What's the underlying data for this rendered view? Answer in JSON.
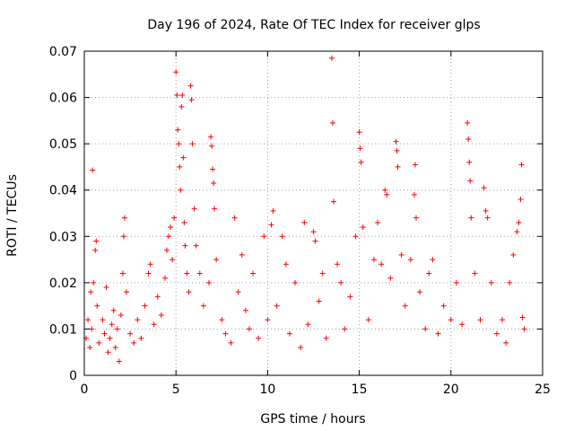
{
  "chart_data": {
    "type": "scatter",
    "title": "Day 196 of 2024, Rate Of TEC Index for receiver glps",
    "xlabel": "GPS time / hours",
    "ylabel": "ROTI / TECUs",
    "xlim": [
      0,
      25
    ],
    "ylim": [
      0,
      0.07
    ],
    "xticks": [
      0,
      5,
      10,
      15,
      20,
      25
    ],
    "xtick_labels": [
      "0",
      "5",
      "10",
      "15",
      "20",
      "25"
    ],
    "yticks": [
      0,
      0.01,
      0.02,
      0.03,
      0.04,
      0.05,
      0.06,
      0.07
    ],
    "ytick_labels": [
      "0",
      "0.01",
      "0.02",
      "0.03",
      "0.04",
      "0.05",
      "0.06",
      "0.07"
    ],
    "grid": true,
    "marker": "+",
    "series_color": "#ff0000",
    "points": [
      [
        0.1,
        0.008
      ],
      [
        0.2,
        0.012
      ],
      [
        0.3,
        0.006
      ],
      [
        0.35,
        0.018
      ],
      [
        0.4,
        0.01
      ],
      [
        0.45,
        0.0443
      ],
      [
        0.5,
        0.02
      ],
      [
        0.6,
        0.027
      ],
      [
        0.65,
        0.029
      ],
      [
        0.7,
        0.015
      ],
      [
        0.8,
        0.007
      ],
      [
        1.0,
        0.012
      ],
      [
        1.1,
        0.009
      ],
      [
        1.2,
        0.019
      ],
      [
        1.3,
        0.005
      ],
      [
        1.4,
        0.008
      ],
      [
        1.5,
        0.011
      ],
      [
        1.6,
        0.014
      ],
      [
        1.7,
        0.006
      ],
      [
        1.8,
        0.01
      ],
      [
        1.9,
        0.003
      ],
      [
        2.0,
        0.013
      ],
      [
        2.1,
        0.022
      ],
      [
        2.15,
        0.03
      ],
      [
        2.2,
        0.034
      ],
      [
        2.3,
        0.018
      ],
      [
        2.5,
        0.009
      ],
      [
        2.7,
        0.007
      ],
      [
        2.9,
        0.012
      ],
      [
        3.1,
        0.008
      ],
      [
        3.3,
        0.015
      ],
      [
        3.5,
        0.022
      ],
      [
        3.6,
        0.024
      ],
      [
        3.8,
        0.011
      ],
      [
        4.0,
        0.017
      ],
      [
        4.2,
        0.013
      ],
      [
        4.4,
        0.021
      ],
      [
        4.5,
        0.027
      ],
      [
        4.6,
        0.03
      ],
      [
        4.7,
        0.032
      ],
      [
        4.8,
        0.025
      ],
      [
        4.9,
        0.034
      ],
      [
        5.0,
        0.0655
      ],
      [
        5.05,
        0.0605
      ],
      [
        5.1,
        0.053
      ],
      [
        5.15,
        0.05
      ],
      [
        5.2,
        0.045
      ],
      [
        5.25,
        0.04
      ],
      [
        5.3,
        0.058
      ],
      [
        5.35,
        0.0605
      ],
      [
        5.4,
        0.047
      ],
      [
        5.45,
        0.033
      ],
      [
        5.5,
        0.028
      ],
      [
        5.6,
        0.022
      ],
      [
        5.7,
        0.018
      ],
      [
        5.8,
        0.0625
      ],
      [
        5.85,
        0.0595
      ],
      [
        5.9,
        0.05
      ],
      [
        6.0,
        0.036
      ],
      [
        6.1,
        0.028
      ],
      [
        6.3,
        0.022
      ],
      [
        6.5,
        0.015
      ],
      [
        6.8,
        0.02
      ],
      [
        6.9,
        0.0515
      ],
      [
        6.95,
        0.0495
      ],
      [
        7.0,
        0.0445
      ],
      [
        7.05,
        0.0415
      ],
      [
        7.1,
        0.036
      ],
      [
        7.2,
        0.025
      ],
      [
        7.5,
        0.012
      ],
      [
        7.7,
        0.009
      ],
      [
        8.0,
        0.007
      ],
      [
        8.2,
        0.034
      ],
      [
        8.4,
        0.018
      ],
      [
        8.6,
        0.026
      ],
      [
        8.8,
        0.014
      ],
      [
        9.0,
        0.01
      ],
      [
        9.2,
        0.022
      ],
      [
        9.5,
        0.008
      ],
      [
        9.8,
        0.03
      ],
      [
        10.0,
        0.012
      ],
      [
        10.2,
        0.0325
      ],
      [
        10.3,
        0.0355
      ],
      [
        10.5,
        0.015
      ],
      [
        10.8,
        0.03
      ],
      [
        11.0,
        0.024
      ],
      [
        11.2,
        0.009
      ],
      [
        11.5,
        0.02
      ],
      [
        11.8,
        0.006
      ],
      [
        12.0,
        0.033
      ],
      [
        12.2,
        0.011
      ],
      [
        12.5,
        0.031
      ],
      [
        12.6,
        0.029
      ],
      [
        12.8,
        0.016
      ],
      [
        13.0,
        0.022
      ],
      [
        13.2,
        0.008
      ],
      [
        13.5,
        0.0685
      ],
      [
        13.55,
        0.0545
      ],
      [
        13.6,
        0.0375
      ],
      [
        13.8,
        0.024
      ],
      [
        14.0,
        0.02
      ],
      [
        14.2,
        0.01
      ],
      [
        14.5,
        0.017
      ],
      [
        14.8,
        0.03
      ],
      [
        15.0,
        0.0525
      ],
      [
        15.05,
        0.049
      ],
      [
        15.1,
        0.046
      ],
      [
        15.2,
        0.032
      ],
      [
        15.5,
        0.012
      ],
      [
        15.8,
        0.025
      ],
      [
        16.0,
        0.033
      ],
      [
        16.2,
        0.024
      ],
      [
        16.4,
        0.04
      ],
      [
        16.5,
        0.039
      ],
      [
        16.7,
        0.021
      ],
      [
        17.0,
        0.0505
      ],
      [
        17.05,
        0.0485
      ],
      [
        17.1,
        0.045
      ],
      [
        17.3,
        0.026
      ],
      [
        17.5,
        0.015
      ],
      [
        17.8,
        0.025
      ],
      [
        18.0,
        0.039
      ],
      [
        18.05,
        0.0455
      ],
      [
        18.1,
        0.034
      ],
      [
        18.3,
        0.018
      ],
      [
        18.6,
        0.01
      ],
      [
        18.8,
        0.022
      ],
      [
        19.0,
        0.025
      ],
      [
        19.3,
        0.009
      ],
      [
        19.6,
        0.015
      ],
      [
        20.0,
        0.012
      ],
      [
        20.3,
        0.02
      ],
      [
        20.6,
        0.011
      ],
      [
        20.9,
        0.0545
      ],
      [
        20.95,
        0.051
      ],
      [
        21.0,
        0.046
      ],
      [
        21.05,
        0.042
      ],
      [
        21.1,
        0.034
      ],
      [
        21.3,
        0.022
      ],
      [
        21.6,
        0.012
      ],
      [
        21.8,
        0.0405
      ],
      [
        21.9,
        0.0355
      ],
      [
        22.0,
        0.034
      ],
      [
        22.2,
        0.02
      ],
      [
        22.5,
        0.009
      ],
      [
        22.8,
        0.012
      ],
      [
        23.0,
        0.007
      ],
      [
        23.2,
        0.02
      ],
      [
        23.4,
        0.026
      ],
      [
        23.6,
        0.031
      ],
      [
        23.7,
        0.033
      ],
      [
        23.8,
        0.038
      ],
      [
        23.85,
        0.0455
      ],
      [
        23.9,
        0.0125
      ],
      [
        24.0,
        0.01
      ]
    ]
  }
}
